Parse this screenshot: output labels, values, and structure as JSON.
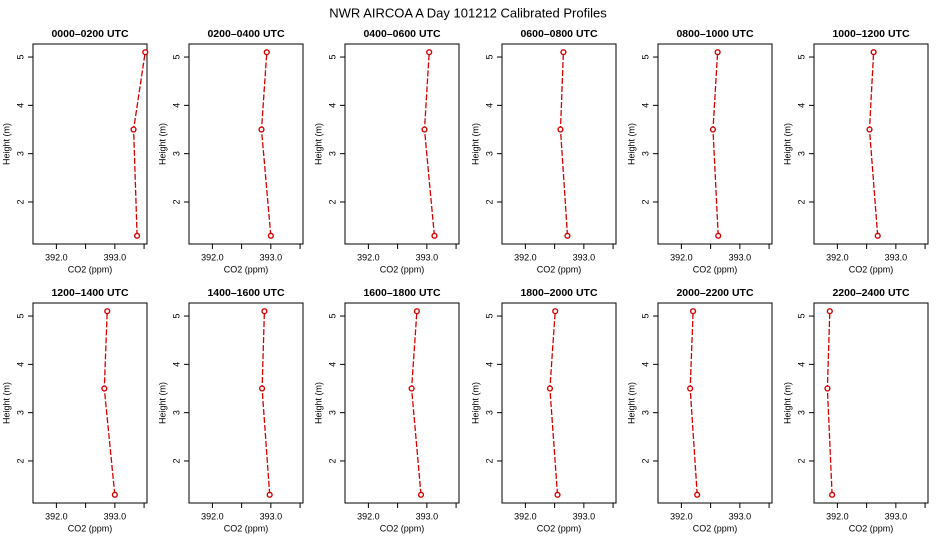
{
  "figure_title": "NWR AIRCOA A  Day 101212  Calibrated Profiles",
  "colors": {
    "series": "#d40000",
    "axis": "#000000",
    "background": "#ffffff"
  },
  "chart_data": [
    {
      "type": "line",
      "title": "0000–0200 UTC",
      "xlabel": "CO2 (ppm)",
      "ylabel": "Height (m)",
      "x_ticks": [
        392.0,
        392.5,
        393.0,
        393.5
      ],
      "x_tick_labels": [
        "392.0",
        "",
        "393.0",
        ""
      ],
      "y_ticks": [
        2,
        3,
        4,
        5
      ],
      "y_tick_labels": [
        "2",
        "3",
        "4",
        "5"
      ],
      "xlim": [
        391.6,
        393.55
      ],
      "ylim": [
        1.13,
        5.27
      ],
      "points": [
        {
          "x": 393.38,
          "y": 1.3
        },
        {
          "x": 393.32,
          "y": 3.5
        },
        {
          "x": 393.52,
          "y": 5.1
        }
      ]
    },
    {
      "type": "line",
      "title": "0200–0400 UTC",
      "xlabel": "CO2 (ppm)",
      "ylabel": "Height (m)",
      "x_ticks": [
        392.0,
        392.5,
        393.0,
        393.5
      ],
      "x_tick_labels": [
        "392.0",
        "",
        "393.0",
        ""
      ],
      "y_ticks": [
        2,
        3,
        4,
        5
      ],
      "y_tick_labels": [
        "2",
        "3",
        "4",
        "5"
      ],
      "xlim": [
        391.6,
        393.55
      ],
      "ylim": [
        1.13,
        5.27
      ],
      "points": [
        {
          "x": 393.0,
          "y": 1.3
        },
        {
          "x": 392.84,
          "y": 3.5
        },
        {
          "x": 392.93,
          "y": 5.1
        }
      ]
    },
    {
      "type": "line",
      "title": "0400–0600 UTC",
      "xlabel": "CO2 (ppm)",
      "ylabel": "Height (m)",
      "x_ticks": [
        392.0,
        392.5,
        393.0,
        393.5
      ],
      "x_tick_labels": [
        "392.0",
        "",
        "393.0",
        ""
      ],
      "y_ticks": [
        2,
        3,
        4,
        5
      ],
      "y_tick_labels": [
        "2",
        "3",
        "4",
        "5"
      ],
      "xlim": [
        391.6,
        393.55
      ],
      "ylim": [
        1.13,
        5.27
      ],
      "points": [
        {
          "x": 393.13,
          "y": 1.3
        },
        {
          "x": 392.96,
          "y": 3.5
        },
        {
          "x": 393.04,
          "y": 5.1
        }
      ]
    },
    {
      "type": "line",
      "title": "0600–0800 UTC",
      "xlabel": "CO2 (ppm)",
      "ylabel": "Height (m)",
      "x_ticks": [
        392.0,
        392.5,
        393.0,
        393.5
      ],
      "x_tick_labels": [
        "392.0",
        "",
        "393.0",
        ""
      ],
      "y_ticks": [
        2,
        3,
        4,
        5
      ],
      "y_tick_labels": [
        "2",
        "3",
        "4",
        "5"
      ],
      "xlim": [
        391.6,
        393.55
      ],
      "ylim": [
        1.13,
        5.27
      ],
      "points": [
        {
          "x": 392.72,
          "y": 1.3
        },
        {
          "x": 392.6,
          "y": 3.5
        },
        {
          "x": 392.65,
          "y": 5.1
        }
      ]
    },
    {
      "type": "line",
      "title": "0800–1000 UTC",
      "xlabel": "CO2 (ppm)",
      "ylabel": "Height (m)",
      "x_ticks": [
        392.0,
        392.5,
        393.0,
        393.5
      ],
      "x_tick_labels": [
        "392.0",
        "",
        "393.0",
        ""
      ],
      "y_ticks": [
        2,
        3,
        4,
        5
      ],
      "y_tick_labels": [
        "2",
        "3",
        "4",
        "5"
      ],
      "xlim": [
        391.6,
        393.55
      ],
      "ylim": [
        1.13,
        5.27
      ],
      "points": [
        {
          "x": 392.63,
          "y": 1.3
        },
        {
          "x": 392.54,
          "y": 3.5
        },
        {
          "x": 392.62,
          "y": 5.1
        }
      ]
    },
    {
      "type": "line",
      "title": "1000–1200 UTC",
      "xlabel": "CO2 (ppm)",
      "ylabel": "Height (m)",
      "x_ticks": [
        392.0,
        392.5,
        393.0,
        393.5
      ],
      "x_tick_labels": [
        "392.0",
        "",
        "393.0",
        ""
      ],
      "y_ticks": [
        2,
        3,
        4,
        5
      ],
      "y_tick_labels": [
        "2",
        "3",
        "4",
        "5"
      ],
      "xlim": [
        391.6,
        393.55
      ],
      "ylim": [
        1.13,
        5.27
      ],
      "points": [
        {
          "x": 392.69,
          "y": 1.3
        },
        {
          "x": 392.55,
          "y": 3.5
        },
        {
          "x": 392.62,
          "y": 5.1
        }
      ]
    },
    {
      "type": "line",
      "title": "1200–1400 UTC",
      "xlabel": "CO2 (ppm)",
      "ylabel": "Height (m)",
      "x_ticks": [
        392.0,
        392.5,
        393.0,
        393.5
      ],
      "x_tick_labels": [
        "392.0",
        "",
        "393.0",
        ""
      ],
      "y_ticks": [
        2,
        3,
        4,
        5
      ],
      "y_tick_labels": [
        "2",
        "3",
        "4",
        "5"
      ],
      "xlim": [
        391.6,
        393.55
      ],
      "ylim": [
        1.13,
        5.27
      ],
      "points": [
        {
          "x": 393.0,
          "y": 1.3
        },
        {
          "x": 392.82,
          "y": 3.5
        },
        {
          "x": 392.87,
          "y": 5.1
        }
      ]
    },
    {
      "type": "line",
      "title": "1400–1600 UTC",
      "xlabel": "CO2 (ppm)",
      "ylabel": "Height (m)",
      "x_ticks": [
        392.0,
        392.5,
        393.0,
        393.5
      ],
      "x_tick_labels": [
        "392.0",
        "",
        "393.0",
        ""
      ],
      "y_ticks": [
        2,
        3,
        4,
        5
      ],
      "y_tick_labels": [
        "2",
        "3",
        "4",
        "5"
      ],
      "xlim": [
        391.6,
        393.55
      ],
      "ylim": [
        1.13,
        5.27
      ],
      "points": [
        {
          "x": 392.98,
          "y": 1.3
        },
        {
          "x": 392.85,
          "y": 3.5
        },
        {
          "x": 392.89,
          "y": 5.1
        }
      ]
    },
    {
      "type": "line",
      "title": "1600–1800 UTC",
      "xlabel": "CO2 (ppm)",
      "ylabel": "Height (m)",
      "x_ticks": [
        392.0,
        392.5,
        393.0,
        393.5
      ],
      "x_tick_labels": [
        "392.0",
        "",
        "393.0",
        ""
      ],
      "y_ticks": [
        2,
        3,
        4,
        5
      ],
      "y_tick_labels": [
        "2",
        "3",
        "4",
        "5"
      ],
      "xlim": [
        391.6,
        393.55
      ],
      "ylim": [
        1.13,
        5.27
      ],
      "points": [
        {
          "x": 392.9,
          "y": 1.3
        },
        {
          "x": 392.74,
          "y": 3.5
        },
        {
          "x": 392.83,
          "y": 5.1
        }
      ]
    },
    {
      "type": "line",
      "title": "1800–2000 UTC",
      "xlabel": "CO2 (ppm)",
      "ylabel": "Height (m)",
      "x_ticks": [
        392.0,
        392.5,
        393.0,
        393.5
      ],
      "x_tick_labels": [
        "392.0",
        "",
        "393.0",
        ""
      ],
      "y_ticks": [
        2,
        3,
        4,
        5
      ],
      "y_tick_labels": [
        "2",
        "3",
        "4",
        "5"
      ],
      "xlim": [
        391.6,
        393.55
      ],
      "ylim": [
        1.13,
        5.27
      ],
      "points": [
        {
          "x": 392.55,
          "y": 1.3
        },
        {
          "x": 392.42,
          "y": 3.5
        },
        {
          "x": 392.51,
          "y": 5.1
        }
      ]
    },
    {
      "type": "line",
      "title": "2000–2200 UTC",
      "xlabel": "CO2 (ppm)",
      "ylabel": "Height (m)",
      "x_ticks": [
        392.0,
        392.5,
        393.0,
        393.5
      ],
      "x_tick_labels": [
        "392.0",
        "",
        "393.0",
        ""
      ],
      "y_ticks": [
        2,
        3,
        4,
        5
      ],
      "y_tick_labels": [
        "2",
        "3",
        "4",
        "5"
      ],
      "xlim": [
        391.6,
        393.55
      ],
      "ylim": [
        1.13,
        5.27
      ],
      "points": [
        {
          "x": 392.27,
          "y": 1.3
        },
        {
          "x": 392.15,
          "y": 3.5
        },
        {
          "x": 392.2,
          "y": 5.1
        }
      ]
    },
    {
      "type": "line",
      "title": "2200–2400 UTC",
      "xlabel": "CO2 (ppm)",
      "ylabel": "Height (m)",
      "x_ticks": [
        392.0,
        392.5,
        393.0,
        393.5
      ],
      "x_tick_labels": [
        "392.0",
        "",
        "393.0",
        ""
      ],
      "y_ticks": [
        2,
        3,
        4,
        5
      ],
      "y_tick_labels": [
        "2",
        "3",
        "4",
        "5"
      ],
      "xlim": [
        391.6,
        393.55
      ],
      "ylim": [
        1.13,
        5.27
      ],
      "points": [
        {
          "x": 391.91,
          "y": 1.3
        },
        {
          "x": 391.83,
          "y": 3.5
        },
        {
          "x": 391.87,
          "y": 5.1
        }
      ]
    }
  ]
}
